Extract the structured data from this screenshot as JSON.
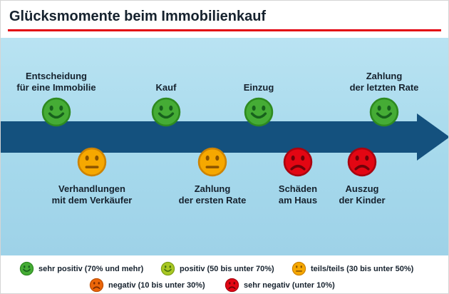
{
  "header": {
    "title": "Glücksmomente beim Immobilienkauf"
  },
  "colors": {
    "accent_red": "#e30613",
    "background_blue": "#a6d9ec",
    "arrow_blue": "#14517e",
    "very_positive_green": "#45ac35",
    "positive_light_green": "#a9c823",
    "neutral_orange": "#f6a800",
    "negative_orange_red": "#ec6608",
    "very_negative_red": "#e30613"
  },
  "timeline": {
    "above": [
      {
        "lines": [
          "Entscheidung",
          "für eine Immobilie"
        ],
        "icon": "happy-face-icon",
        "color": "#45ac35"
      },
      {
        "lines": [
          "Kauf"
        ],
        "icon": "happy-face-icon",
        "color": "#45ac35"
      },
      {
        "lines": [
          "Einzug"
        ],
        "icon": "happy-face-icon",
        "color": "#45ac35"
      },
      {
        "lines": [
          "Zahlung",
          "der letzten Rate"
        ],
        "icon": "happy-face-icon",
        "color": "#45ac35"
      }
    ],
    "below": [
      {
        "lines": [
          "Verhandlungen",
          "mit dem Verkäufer"
        ],
        "icon": "neutral-face-icon",
        "color": "#f6a800"
      },
      {
        "lines": [
          "Zahlung",
          "der ersten Rate"
        ],
        "icon": "neutral-face-icon",
        "color": "#f6a800"
      },
      {
        "lines": [
          "Schäden",
          "am Haus"
        ],
        "icon": "sad-face-icon",
        "color": "#e30613"
      },
      {
        "lines": [
          "Auszug",
          "der Kinder"
        ],
        "icon": "sad-face-icon",
        "color": "#e30613"
      }
    ]
  },
  "legend": [
    {
      "label": "sehr positiv (70% und mehr)",
      "icon": "happy-face-icon",
      "color": "#45ac35"
    },
    {
      "label": "positiv (50 bis unter 70%)",
      "icon": "happy-face-icon",
      "color": "#a9c823"
    },
    {
      "label": "teils/teils (30 bis unter 50%)",
      "icon": "neutral-face-icon",
      "color": "#f6a800"
    },
    {
      "label": "negativ (10 bis unter 30%)",
      "icon": "sad-face-icon",
      "color": "#ec6608"
    },
    {
      "label": "sehr negativ (unter 10%)",
      "icon": "sad-face-icon",
      "color": "#e30613"
    }
  ]
}
